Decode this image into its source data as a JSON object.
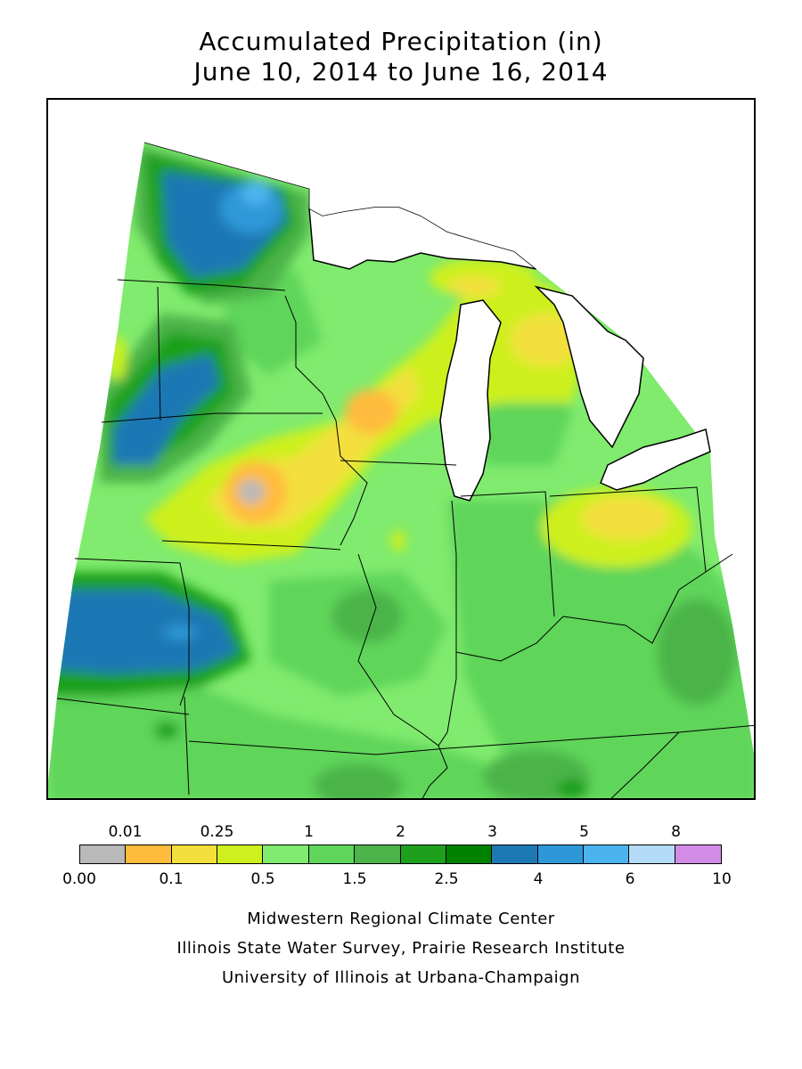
{
  "title": {
    "line1": "Accumulated Precipitation (in)",
    "line2": "June 10, 2014 to June 16, 2014"
  },
  "legend": {
    "top_labels": [
      "0.01",
      "0.25",
      "1",
      "2",
      "3",
      "5",
      "8"
    ],
    "bottom_labels": [
      "0.00",
      "0.1",
      "0.5",
      "1.5",
      "2.5",
      "4",
      "6",
      "10"
    ],
    "bins": [
      {
        "from": "0.00",
        "to": "0.01",
        "color": "#b9b9b9"
      },
      {
        "from": "0.01",
        "to": "0.1",
        "color": "#ffbb3c"
      },
      {
        "from": "0.1",
        "to": "0.25",
        "color": "#f3e03c"
      },
      {
        "from": "0.25",
        "to": "0.5",
        "color": "#cdf01e"
      },
      {
        "from": "0.5",
        "to": "1",
        "color": "#80eb6e"
      },
      {
        "from": "1",
        "to": "1.5",
        "color": "#5fd55a"
      },
      {
        "from": "1.5",
        "to": "2",
        "color": "#4cb44a"
      },
      {
        "from": "2",
        "to": "2.5",
        "color": "#1ea01e"
      },
      {
        "from": "2.5",
        "to": "3",
        "color": "#008200"
      },
      {
        "from": "3",
        "to": "4",
        "color": "#1e78b4"
      },
      {
        "from": "4",
        "to": "5",
        "color": "#2d98d8"
      },
      {
        "from": "5",
        "to": "6",
        "color": "#4bb4ee"
      },
      {
        "from": "6",
        "to": "8",
        "color": "#b4dcf8"
      },
      {
        "from": "8",
        "to": "10",
        "color": "#d28ce6"
      }
    ]
  },
  "credits": {
    "line1": "Midwestern Regional Climate Center",
    "line2": "Illinois State Water Survey, Prairie Research Institute",
    "line3": "University of Illinois at Urbana-Champaign"
  }
}
